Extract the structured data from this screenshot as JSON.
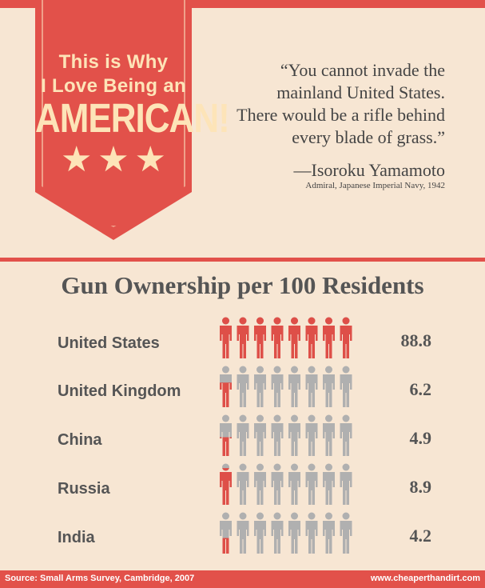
{
  "banner": {
    "line1": "This is Why",
    "line2": "I Love Being an",
    "line3": "AMERICAN!"
  },
  "quote": {
    "lines": [
      "“You cannot invade the",
      "mainland United States.",
      "There would be a rifle behind",
      "every blade of grass.”"
    ],
    "author": "—Isoroku Yamamoto",
    "author_title": "Admiral, Japanese Imperial Navy, 1942"
  },
  "chart_data": {
    "type": "bar",
    "title": "Gun Ownership per 100 Residents",
    "categories": [
      "United States",
      "United Kingdom",
      "China",
      "Russia",
      "India"
    ],
    "values": [
      88.8,
      6.2,
      4.9,
      8.9,
      4.2
    ],
    "value_labels": [
      "88.8",
      "6.2",
      "4.9",
      "8.9",
      "4.2"
    ],
    "unit_per_icon": 10,
    "icons_per_row": 8,
    "fill_color": "#de4f48",
    "empty_color": "#b0b0b0"
  },
  "footer": {
    "source": "Source: Small Arms Survey, Cambridge, 2007",
    "website": "www.cheaperthandirt.com"
  }
}
